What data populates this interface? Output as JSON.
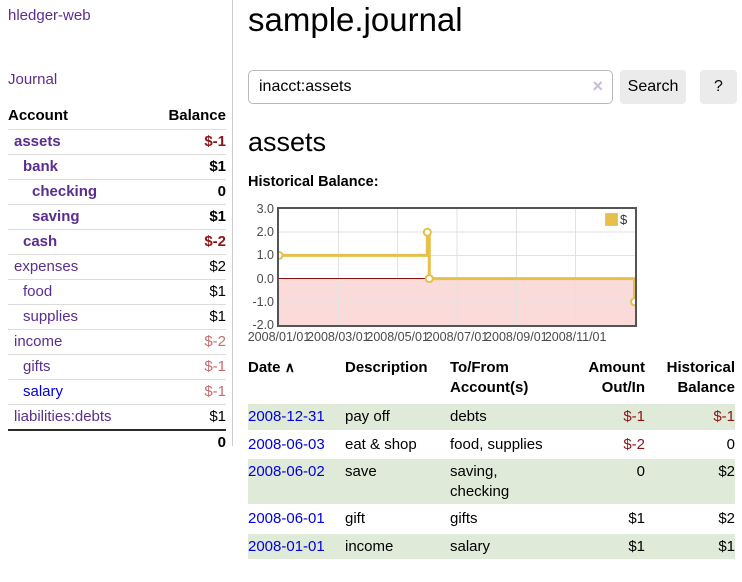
{
  "app": {
    "title": "hledger-web"
  },
  "nav": {
    "journal": "Journal"
  },
  "sidebar": {
    "header": {
      "account": "Account",
      "balance": "Balance"
    },
    "accounts": [
      {
        "name": "assets",
        "level": 0,
        "bold": true,
        "link": "purple",
        "balance": "$-1",
        "neg": "strong"
      },
      {
        "name": "bank",
        "level": 1,
        "bold": true,
        "link": "purple",
        "balance": "$1",
        "neg": "none"
      },
      {
        "name": "checking",
        "level": 2,
        "bold": true,
        "link": "purple",
        "balance": "0",
        "neg": "none"
      },
      {
        "name": "saving",
        "level": 2,
        "bold": true,
        "link": "purple",
        "balance": "$1",
        "neg": "none"
      },
      {
        "name": "cash",
        "level": 1,
        "bold": true,
        "link": "purple",
        "balance": "$-2",
        "neg": "strong"
      },
      {
        "name": "expenses",
        "level": 0,
        "bold": false,
        "link": "purple",
        "balance": "$2",
        "neg": "none"
      },
      {
        "name": "food",
        "level": 1,
        "bold": false,
        "link": "purple",
        "balance": "$1",
        "neg": "none"
      },
      {
        "name": "supplies",
        "level": 1,
        "bold": false,
        "link": "purple",
        "balance": "$1",
        "neg": "none"
      },
      {
        "name": "income",
        "level": 0,
        "bold": false,
        "link": "purple",
        "balance": "$-2",
        "neg": "soft"
      },
      {
        "name": "gifts",
        "level": 1,
        "bold": false,
        "link": "purple",
        "balance": "$-1",
        "neg": "soft"
      },
      {
        "name": "salary",
        "level": 1,
        "bold": false,
        "link": "blue",
        "balance": "$-1",
        "neg": "soft"
      },
      {
        "name": "liabilities:debts",
        "level": 0,
        "bold": false,
        "link": "purple",
        "balance": "$1",
        "neg": "none"
      }
    ],
    "total": "0"
  },
  "header": {
    "title": "sample.journal"
  },
  "search": {
    "value": "inacct:assets",
    "clear_icon": "×",
    "button": "Search",
    "help": "?"
  },
  "account_page": {
    "title": "assets",
    "chart_label": "Historical Balance:"
  },
  "chart_data": {
    "type": "line",
    "step": true,
    "title": "Historical Balance",
    "legend_label": "$",
    "legend_position": "top-right",
    "x": [
      "2008-01-01",
      "2008-06-01",
      "2008-06-03",
      "2008-12-31"
    ],
    "values": [
      1,
      2,
      0,
      -1
    ],
    "ylim": [
      -2,
      3
    ],
    "yticks": [
      "3.0",
      "2.0",
      "1.0",
      "0.0",
      "-1.0",
      "-2.0"
    ],
    "xticks": [
      {
        "label": "2008/01/01",
        "month": 0
      },
      {
        "label": "2008/03/01",
        "month": 2
      },
      {
        "label": "2008/05/01",
        "month": 4
      },
      {
        "label": "2008/07/01",
        "month": 6
      },
      {
        "label": "2008/09/01",
        "month": 8
      },
      {
        "label": "2008/11/01",
        "month": 10
      }
    ],
    "x_range_months": 12,
    "grid": true,
    "line_color": "#e6c04a",
    "negative_fill": "#fbdada",
    "zero_line_color": "#8b1010",
    "grid_color": "#e2e2e2"
  },
  "table": {
    "sort_icon": "∧",
    "headers": [
      "Date",
      "Description",
      "To/From Account(s)",
      "Amount Out/In",
      "Historical Balance"
    ],
    "rows": [
      {
        "date": "2008-12-31",
        "description": "pay off",
        "accounts": "debts",
        "amount": "$-1",
        "amount_neg": true,
        "balance": "$-1",
        "balance_neg": true,
        "shaded": true
      },
      {
        "date": "2008-06-03",
        "description": "eat & shop",
        "accounts": "food, supplies",
        "amount": "$-2",
        "amount_neg": true,
        "balance": "0",
        "balance_neg": false,
        "shaded": false
      },
      {
        "date": "2008-06-02",
        "description": "save",
        "accounts": "saving, checking",
        "amount": "0",
        "amount_neg": false,
        "balance": "$2",
        "balance_neg": false,
        "shaded": true
      },
      {
        "date": "2008-06-01",
        "description": "gift",
        "accounts": "gifts",
        "amount": "$1",
        "amount_neg": false,
        "balance": "$2",
        "balance_neg": false,
        "shaded": false
      },
      {
        "date": "2008-01-01",
        "description": "income",
        "accounts": "salary",
        "amount": "$1",
        "amount_neg": false,
        "balance": "$1",
        "balance_neg": false,
        "shaded": true
      }
    ]
  }
}
